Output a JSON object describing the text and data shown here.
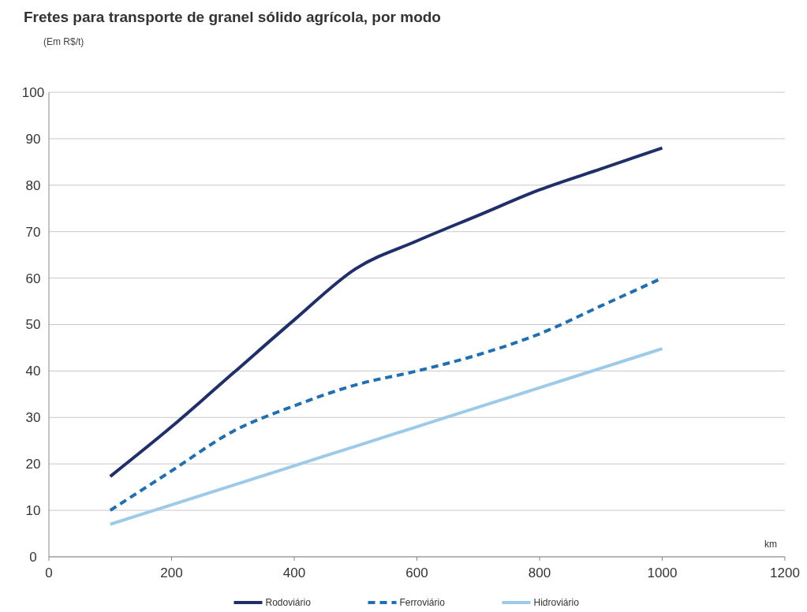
{
  "chart_data": {
    "type": "line",
    "title": "Fretes para transporte de granel sólido agrícola, por modo",
    "subtitle": "(Em R$/t)",
    "xlabel": "km",
    "x": [
      100,
      200,
      300,
      400,
      500,
      600,
      700,
      800,
      900,
      1000
    ],
    "series": [
      {
        "name": "Rodoviário",
        "color": "#1f2f6b",
        "line_style": "solid",
        "values": [
          17.3,
          28,
          39.5,
          51,
          62,
          68,
          73.5,
          79,
          83.5,
          88
        ]
      },
      {
        "name": "Ferroviário",
        "color": "#1f6fb4",
        "line_style": "dashed",
        "values": [
          10,
          18.5,
          27,
          32.5,
          37,
          40,
          43.5,
          48,
          54,
          60
        ]
      },
      {
        "name": "Hidroviário",
        "color": "#9ccbea",
        "line_style": "solid",
        "values": [
          7,
          11.2,
          15.4,
          19.6,
          23.8,
          28,
          32.2,
          36.4,
          40.6,
          44.8
        ]
      }
    ],
    "xlim": [
      0,
      1200
    ],
    "xticks": [
      0,
      200,
      400,
      600,
      800,
      1000,
      1200
    ],
    "ylim": [
      0,
      100
    ],
    "yticks": [
      0,
      10,
      20,
      30,
      40,
      50,
      60,
      70,
      80,
      90,
      100
    ],
    "grid": "y",
    "legend": "bottom"
  }
}
